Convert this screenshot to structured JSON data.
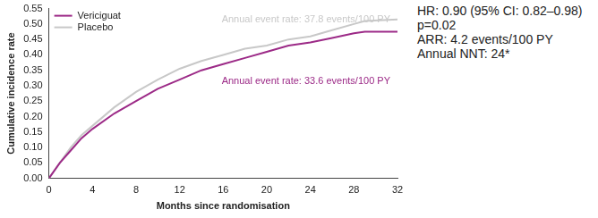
{
  "chart_data": {
    "type": "line",
    "x_label": "Months since randomisation",
    "y_label": "Cumulative incidence rate",
    "x": [
      0,
      1,
      2,
      3,
      4,
      6,
      8,
      10,
      12,
      14,
      16,
      18,
      20,
      22,
      24,
      26,
      28,
      29,
      32
    ],
    "series": [
      {
        "name": "Vericiguat",
        "color": "#9c2a87",
        "values": [
          0,
          0.05,
          0.09,
          0.13,
          0.16,
          0.21,
          0.25,
          0.29,
          0.32,
          0.35,
          0.37,
          0.39,
          0.41,
          0.43,
          0.44,
          0.455,
          0.47,
          0.475,
          0.475
        ],
        "annotation": "Annual event rate: 33.6 events/100 PY"
      },
      {
        "name": "Placebo",
        "color": "#c8c8c8",
        "values": [
          0,
          0.05,
          0.1,
          0.14,
          0.17,
          0.23,
          0.28,
          0.32,
          0.355,
          0.38,
          0.4,
          0.42,
          0.43,
          0.45,
          0.46,
          0.48,
          0.5,
          0.51,
          0.515
        ],
        "annotation": "Annual event rate: 37.8 events/100 PY"
      }
    ],
    "xlim": [
      0,
      32
    ],
    "xticks": [
      0,
      4,
      8,
      12,
      16,
      20,
      24,
      28,
      32
    ],
    "ylim": [
      0,
      0.55
    ],
    "yticks": [
      {
        "value": 0,
        "label": "0.00"
      },
      {
        "value": 0.05,
        "label": "0.05"
      },
      {
        "value": 0.1,
        "label": "0.10"
      },
      {
        "value": 0.15,
        "label": "0.15"
      },
      {
        "value": 0.2,
        "label": "0.20"
      },
      {
        "value": 0.25,
        "label": "0.25"
      },
      {
        "value": 0.3,
        "label": "0.30"
      },
      {
        "value": 0.35,
        "label": "0.35"
      },
      {
        "value": 0.4,
        "label": "0.40"
      },
      {
        "value": 0.45,
        "label": "0.45"
      },
      {
        "value": 0.5,
        "label": "0.50"
      },
      {
        "value": 0.55,
        "label": "0.55"
      }
    ],
    "grid": false,
    "legend": "upper left",
    "stats_text": [
      "HR: 0.90 (95% CI: 0.82–0.98)",
      "p=0.02",
      "ARR: 4.2 events/100 PY",
      "Annual NNT: 24*"
    ]
  }
}
